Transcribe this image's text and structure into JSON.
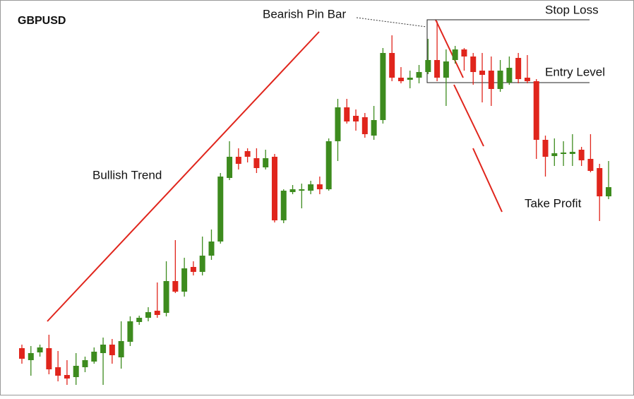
{
  "chart_data": {
    "type": "candlestick",
    "title": "GBPUSD",
    "annotations": [
      "Bearish Pin Bar",
      "Stop Loss",
      "Entry Level",
      "Bullish Trend",
      "Take Profit"
    ],
    "up_color": "#3d8b1e",
    "down_color": "#e0251c",
    "ylim": [
      0,
      560
    ],
    "open": [
      67,
      50,
      61,
      67,
      40,
      29,
      26,
      40,
      48,
      60,
      72,
      54,
      76,
      104,
      110,
      120,
      117,
      162,
      147,
      182,
      175,
      198,
      218,
      308,
      338,
      346,
      336,
      323,
      338,
      248,
      288,
      290,
      290,
      299,
      292,
      360,
      408,
      396,
      394,
      368,
      390,
      485,
      450,
      447,
      450,
      458,
      475,
      450,
      475,
      490,
      480,
      460,
      460,
      434,
      443,
      478,
      450,
      445,
      362,
      339,
      342,
      342,
      348,
      335,
      322,
      282
    ],
    "high": [
      72,
      70,
      72,
      86,
      63,
      50,
      60,
      55,
      68,
      82,
      80,
      105,
      112,
      113,
      125,
      160,
      190,
      220,
      195,
      190,
      225,
      235,
      315,
      360,
      350,
      350,
      350,
      348,
      342,
      292,
      298,
      300,
      304,
      310,
      364,
      420,
      420,
      405,
      400,
      410,
      492,
      510,
      465,
      460,
      468,
      505,
      530,
      490,
      495,
      492,
      485,
      485,
      480,
      475,
      480,
      485,
      482,
      448,
      368,
      364,
      360,
      370,
      352,
      370,
      328,
      332
    ],
    "low": [
      45,
      28,
      55,
      30,
      20,
      15,
      15,
      33,
      45,
      15,
      45,
      38,
      70,
      100,
      105,
      110,
      112,
      145,
      140,
      170,
      170,
      192,
      215,
      305,
      320,
      330,
      315,
      320,
      245,
      244,
      285,
      265,
      285,
      285,
      290,
      332,
      385,
      375,
      365,
      362,
      385,
      445,
      442,
      435,
      442,
      455,
      445,
      410,
      470,
      460,
      440,
      415,
      410,
      430,
      440,
      442,
      442,
      335,
      310,
      325,
      325,
      325,
      325,
      316,
      247,
      278
    ],
    "close": [
      52,
      60,
      68,
      37,
      28,
      24,
      42,
      50,
      62,
      72,
      57,
      77,
      105,
      110,
      118,
      114,
      162,
      147,
      180,
      175,
      198,
      218,
      310,
      338,
      328,
      338,
      322,
      336,
      248,
      290,
      292,
      292,
      299,
      292,
      360,
      408,
      388,
      388,
      370,
      390,
      485,
      450,
      445,
      450,
      458,
      475,
      450,
      473,
      490,
      480,
      458,
      454,
      434,
      460,
      464,
      448,
      445,
      362,
      338,
      343,
      344,
      345,
      333,
      318,
      282,
      295
    ]
  }
}
